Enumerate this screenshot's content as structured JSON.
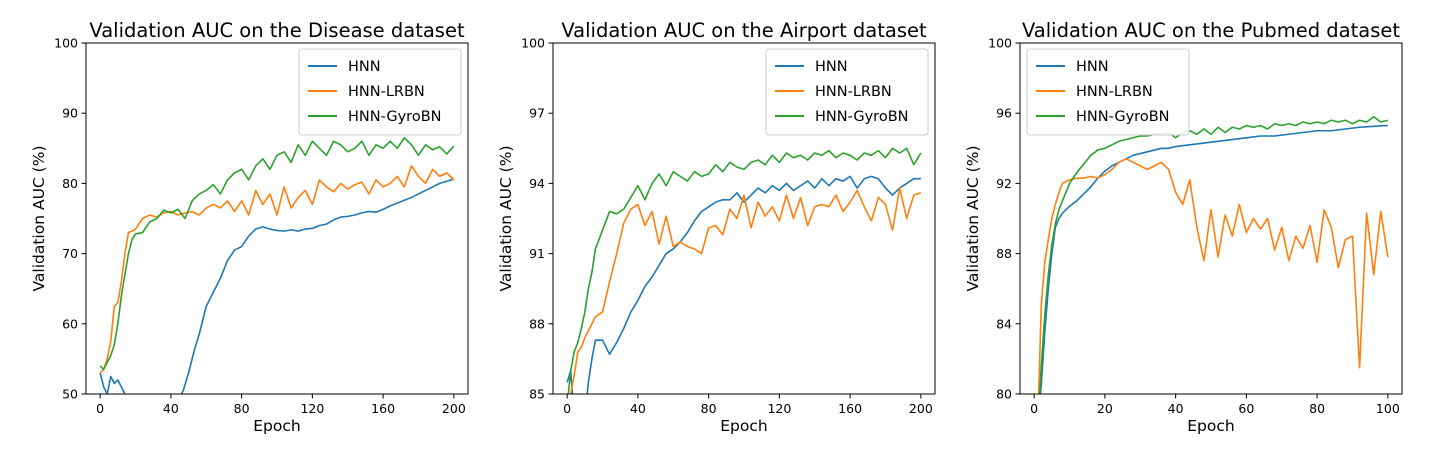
{
  "chart_data": [
    {
      "type": "line",
      "title": "Validation AUC on the Disease dataset",
      "xlabel": "Epoch",
      "ylabel": "Validation AUC (%)",
      "xlim": [
        -8,
        208
      ],
      "ylim": [
        50,
        100
      ],
      "xticks": [
        0,
        40,
        80,
        120,
        160,
        200
      ],
      "yticks": [
        50,
        60,
        70,
        80,
        90,
        100
      ],
      "grid": false,
      "legend": "top-right",
      "series": [
        {
          "name": "HNN",
          "color": "#1f77b4",
          "x": [
            0,
            2,
            4,
            6,
            8,
            10,
            12,
            14,
            16,
            44,
            47,
            50,
            53,
            56,
            60,
            64,
            68,
            72,
            76,
            80,
            84,
            88,
            92,
            96,
            100,
            104,
            108,
            112,
            116,
            120,
            124,
            128,
            132,
            136,
            140,
            144,
            148,
            152,
            156,
            160,
            164,
            168,
            172,
            176,
            180,
            184,
            188,
            192,
            196,
            200
          ],
          "y": [
            53,
            51,
            50,
            52.5,
            51.5,
            52,
            51,
            50,
            49,
            49,
            50.5,
            53,
            56,
            58.5,
            62.5,
            64.5,
            66.5,
            69,
            70.5,
            71,
            72.5,
            73.5,
            73.8,
            73.5,
            73.3,
            73.2,
            73.4,
            73.2,
            73.5,
            73.6,
            74,
            74.2,
            74.8,
            75.2,
            75.3,
            75.5,
            75.8,
            76,
            75.9,
            76.3,
            76.8,
            77.2,
            77.6,
            78,
            78.5,
            79,
            79.5,
            80,
            80.3,
            80.6
          ]
        },
        {
          "name": "HNN-LRBN",
          "color": "#ff7f0e",
          "x": [
            0,
            2,
            4,
            6,
            8,
            10,
            12,
            14,
            16,
            18,
            20,
            24,
            28,
            32,
            36,
            40,
            44,
            48,
            52,
            56,
            60,
            64,
            68,
            72,
            76,
            80,
            84,
            88,
            92,
            96,
            100,
            104,
            108,
            112,
            116,
            120,
            124,
            128,
            132,
            136,
            140,
            144,
            148,
            152,
            156,
            160,
            164,
            168,
            172,
            176,
            180,
            184,
            188,
            192,
            196,
            200
          ],
          "y": [
            53,
            53.5,
            55,
            57.5,
            62.5,
            63,
            66,
            70,
            73,
            73.2,
            73.5,
            75,
            75.5,
            75.2,
            75.8,
            76,
            75.5,
            75.8,
            76,
            75.5,
            76.5,
            77,
            76.5,
            77.5,
            76,
            77.5,
            75.5,
            79,
            77,
            78.5,
            75.5,
            79.5,
            76.5,
            78,
            79,
            77,
            80.5,
            79.5,
            78.8,
            80,
            79.2,
            79.8,
            80.2,
            78.5,
            80.5,
            79.5,
            80,
            81,
            79.5,
            82.5,
            81,
            80,
            82,
            81,
            81.5,
            80.5
          ]
        },
        {
          "name": "HNN-GyroBN",
          "color": "#2ca02c",
          "x": [
            0,
            2,
            4,
            6,
            8,
            10,
            12,
            14,
            16,
            18,
            20,
            24,
            28,
            32,
            36,
            40,
            44,
            48,
            52,
            56,
            60,
            64,
            68,
            72,
            76,
            80,
            84,
            88,
            92,
            96,
            100,
            104,
            108,
            112,
            116,
            120,
            124,
            128,
            132,
            136,
            140,
            144,
            148,
            152,
            156,
            160,
            164,
            168,
            172,
            176,
            180,
            184,
            188,
            192,
            196,
            200
          ],
          "y": [
            54,
            53.5,
            54.5,
            55.5,
            57,
            60,
            64,
            67,
            70,
            72,
            72.8,
            73,
            74.5,
            75,
            76.2,
            75.8,
            76.3,
            75,
            77.5,
            78.5,
            79,
            79.8,
            78.5,
            80.5,
            81.5,
            82,
            80.5,
            82.5,
            83.5,
            82,
            84,
            84.5,
            83,
            85.5,
            84,
            86,
            85,
            84,
            86,
            85.5,
            84.5,
            85,
            86,
            84,
            85.5,
            85,
            86,
            85,
            86.5,
            85.5,
            84,
            85.5,
            84.8,
            85.2,
            84.2,
            85.3
          ]
        }
      ]
    },
    {
      "type": "line",
      "title": "Validation AUC on the Airport dataset",
      "xlabel": "Epoch",
      "ylabel": "Validation AUC (%)",
      "xlim": [
        -8,
        208
      ],
      "ylim": [
        85,
        100
      ],
      "xticks": [
        0,
        40,
        80,
        120,
        160,
        200
      ],
      "yticks": [
        85,
        88,
        91,
        94,
        97,
        100
      ],
      "grid": false,
      "legend": "top-right",
      "series": [
        {
          "name": "HNN",
          "color": "#1f77b4",
          "x": [
            0,
            2,
            4,
            6,
            8,
            10,
            12,
            14,
            16,
            20,
            24,
            28,
            32,
            36,
            40,
            44,
            48,
            52,
            56,
            60,
            64,
            68,
            72,
            76,
            80,
            84,
            88,
            92,
            96,
            100,
            104,
            108,
            112,
            116,
            120,
            124,
            128,
            132,
            136,
            140,
            144,
            148,
            152,
            156,
            160,
            164,
            168,
            172,
            176,
            180,
            184,
            188,
            192,
            196,
            200
          ],
          "y": [
            85.5,
            86,
            84,
            82,
            82.5,
            84,
            85.5,
            86.5,
            87.3,
            87.3,
            86.7,
            87.2,
            87.8,
            88.5,
            89,
            89.6,
            90,
            90.5,
            91,
            91.2,
            91.5,
            91.9,
            92.4,
            92.8,
            93,
            93.2,
            93.3,
            93.3,
            93.6,
            93.2,
            93.5,
            93.8,
            93.6,
            93.9,
            93.7,
            94,
            93.7,
            93.9,
            94.1,
            93.8,
            94.2,
            93.9,
            94.2,
            94.1,
            94.3,
            93.8,
            94.2,
            94.3,
            94.2,
            93.8,
            93.5,
            93.8,
            94,
            94.2,
            94.2
          ]
        },
        {
          "name": "HNN-LRBN",
          "color": "#ff7f0e",
          "x": [
            0,
            2,
            4,
            6,
            8,
            10,
            12,
            14,
            16,
            20,
            24,
            28,
            32,
            36,
            40,
            44,
            48,
            52,
            56,
            60,
            64,
            68,
            72,
            76,
            80,
            84,
            88,
            92,
            96,
            100,
            104,
            108,
            112,
            116,
            120,
            124,
            128,
            132,
            136,
            140,
            144,
            148,
            152,
            156,
            160,
            164,
            168,
            172,
            176,
            180,
            184,
            188,
            192,
            196,
            200
          ],
          "y": [
            84,
            85,
            85.8,
            86.8,
            87,
            87.4,
            87.7,
            88,
            88.3,
            88.5,
            89.8,
            91,
            92.3,
            92.9,
            93.1,
            92.2,
            92.8,
            91.4,
            92.6,
            91.3,
            91.5,
            91.3,
            91.2,
            91,
            92.1,
            92.2,
            91.8,
            92.9,
            92.5,
            93.5,
            92.1,
            93.2,
            92.6,
            93,
            92.4,
            93.5,
            92.5,
            93.4,
            92.2,
            93,
            93.1,
            93,
            93.5,
            92.8,
            93.2,
            93.7,
            93,
            92.4,
            93.4,
            93.1,
            92,
            93.8,
            92.5,
            93.5,
            93.6
          ]
        },
        {
          "name": "HNN-GyroBN",
          "color": "#2ca02c",
          "x": [
            0,
            2,
            4,
            6,
            8,
            10,
            12,
            14,
            16,
            20,
            24,
            28,
            32,
            36,
            40,
            44,
            48,
            52,
            56,
            60,
            64,
            68,
            72,
            76,
            80,
            84,
            88,
            92,
            96,
            100,
            104,
            108,
            112,
            116,
            120,
            124,
            128,
            132,
            136,
            140,
            144,
            148,
            152,
            156,
            160,
            164,
            168,
            172,
            176,
            180,
            184,
            188,
            192,
            196,
            200
          ],
          "y": [
            84.5,
            86,
            86.8,
            87.2,
            87.8,
            88.5,
            89.5,
            90.2,
            91.2,
            92,
            92.8,
            92.7,
            92.9,
            93.4,
            93.9,
            93.3,
            94,
            94.4,
            93.9,
            94.5,
            94.3,
            94.1,
            94.5,
            94.3,
            94.4,
            94.8,
            94.5,
            94.9,
            94.7,
            94.6,
            94.9,
            95,
            94.8,
            95.2,
            94.9,
            95.3,
            95.1,
            95.2,
            95,
            95.3,
            95.2,
            95.4,
            95.1,
            95.3,
            95.2,
            95,
            95.3,
            95.2,
            95.4,
            95.1,
            95.5,
            95.3,
            95.5,
            94.8,
            95.3
          ]
        }
      ]
    },
    {
      "type": "line",
      "title": "Validation AUC on the Pubmed dataset",
      "xlabel": "Epoch",
      "ylabel": "Validation AUC (%)",
      "xlim": [
        -4,
        104
      ],
      "ylim": [
        80,
        100
      ],
      "xticks": [
        0,
        20,
        40,
        60,
        80,
        100
      ],
      "yticks": [
        80,
        84,
        88,
        92,
        96,
        100
      ],
      "grid": false,
      "legend": "top-left",
      "series": [
        {
          "name": "HNN",
          "color": "#1f77b4",
          "x": [
            1,
            2,
            3,
            4,
            5,
            6,
            7,
            8,
            9,
            10,
            12,
            14,
            16,
            18,
            20,
            22,
            24,
            26,
            28,
            30,
            32,
            34,
            36,
            38,
            40,
            44,
            48,
            52,
            56,
            60,
            64,
            68,
            72,
            76,
            80,
            84,
            88,
            92,
            96,
            100
          ],
          "y": [
            78,
            80.5,
            83.5,
            86,
            88,
            89.5,
            90,
            90.3,
            90.5,
            90.7,
            91,
            91.4,
            91.8,
            92.3,
            92.7,
            93,
            93.2,
            93.4,
            93.6,
            93.7,
            93.8,
            93.9,
            94,
            94,
            94.1,
            94.2,
            94.3,
            94.4,
            94.5,
            94.6,
            94.7,
            94.7,
            94.8,
            94.9,
            95,
            95,
            95.1,
            95.2,
            95.25,
            95.3
          ]
        },
        {
          "name": "HNN-LRBN",
          "color": "#ff7f0e",
          "x": [
            1,
            2,
            3,
            4,
            5,
            6,
            7,
            8,
            9,
            10,
            12,
            14,
            16,
            18,
            20,
            22,
            24,
            26,
            28,
            30,
            32,
            34,
            36,
            38,
            40,
            42,
            44,
            46,
            48,
            50,
            52,
            54,
            56,
            58,
            60,
            62,
            64,
            66,
            68,
            70,
            72,
            74,
            76,
            78,
            80,
            82,
            84,
            86,
            88,
            90,
            92,
            94,
            96,
            98,
            100
          ],
          "y": [
            78,
            85,
            87.5,
            88.8,
            90,
            90.8,
            91.5,
            92,
            92.1,
            92.2,
            92.3,
            92.3,
            92.4,
            92.3,
            92.5,
            92.8,
            93.2,
            93.4,
            93.2,
            93,
            92.8,
            93,
            93.2,
            92.8,
            91.5,
            90.8,
            92.2,
            89.5,
            87.6,
            90.5,
            87.8,
            90.2,
            89,
            90.8,
            89.2,
            90,
            89.4,
            90,
            88.2,
            89.5,
            87.6,
            89,
            88.3,
            89.6,
            87.5,
            90.5,
            89.5,
            87.2,
            88.8,
            89,
            81.5,
            90.3,
            86.8,
            90.4,
            87.8
          ]
        },
        {
          "name": "HNN-GyroBN",
          "color": "#2ca02c",
          "x": [
            1,
            2,
            3,
            4,
            5,
            6,
            7,
            8,
            9,
            10,
            12,
            14,
            16,
            18,
            20,
            22,
            24,
            26,
            28,
            30,
            32,
            34,
            36,
            38,
            40,
            42,
            44,
            46,
            48,
            50,
            52,
            54,
            56,
            58,
            60,
            62,
            64,
            66,
            68,
            70,
            72,
            74,
            76,
            78,
            80,
            82,
            84,
            86,
            88,
            90,
            92,
            94,
            96,
            98,
            100
          ],
          "y": [
            78,
            81.5,
            84.5,
            86.8,
            88.5,
            89.7,
            90.5,
            91,
            91.5,
            92,
            92.6,
            93.1,
            93.6,
            93.9,
            94,
            94.2,
            94.4,
            94.5,
            94.6,
            94.7,
            94.7,
            94.8,
            94.8,
            94.9,
            94.6,
            94.9,
            95,
            94.8,
            95.1,
            94.8,
            95.2,
            94.9,
            95.2,
            95.1,
            95.3,
            95.2,
            95.3,
            95.1,
            95.4,
            95.3,
            95.4,
            95.3,
            95.5,
            95.4,
            95.5,
            95.4,
            95.6,
            95.5,
            95.6,
            95.4,
            95.6,
            95.5,
            95.8,
            95.5,
            95.6
          ]
        }
      ]
    }
  ]
}
